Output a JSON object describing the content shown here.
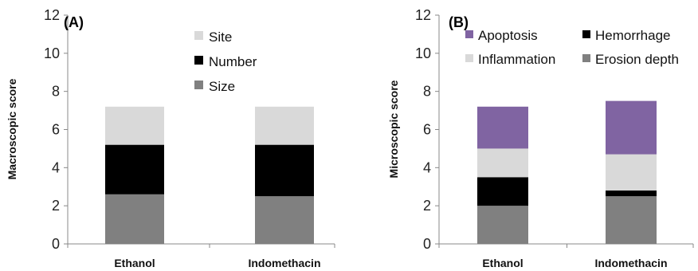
{
  "chart_data": [
    {
      "type": "bar",
      "stacked": true,
      "panel_label": "(A)",
      "ylabel": "Macroscopic score",
      "ylim": [
        0,
        12
      ],
      "yticks": [
        0,
        2,
        4,
        6,
        8,
        10,
        12
      ],
      "categories": [
        "Ethanol",
        "Indomethacin"
      ],
      "series": [
        {
          "name": "Size",
          "color": "#808080",
          "values": [
            2.6,
            2.5
          ]
        },
        {
          "name": "Number",
          "color": "#000000",
          "values": [
            2.6,
            2.7
          ]
        },
        {
          "name": "Site",
          "color": "#d9d9d9",
          "values": [
            2.0,
            2.0
          ]
        }
      ],
      "legend_order": [
        "Site",
        "Number",
        "Size"
      ],
      "legend_position": "top-center",
      "grid": false
    },
    {
      "type": "bar",
      "stacked": true,
      "panel_label": "(B)",
      "ylabel": "Microscopic score",
      "ylim": [
        0,
        12
      ],
      "yticks": [
        0,
        2,
        4,
        6,
        8,
        10,
        12
      ],
      "categories": [
        "Ethanol",
        "Indomethacin"
      ],
      "series": [
        {
          "name": "Erosion depth",
          "color": "#808080",
          "values": [
            2.0,
            2.5
          ]
        },
        {
          "name": "Hemorrhage",
          "color": "#000000",
          "values": [
            1.5,
            0.3
          ]
        },
        {
          "name": "Inflammation",
          "color": "#d9d9d9",
          "values": [
            1.5,
            1.9
          ]
        },
        {
          "name": "Apoptosis",
          "color": "#8064a2",
          "values": [
            2.2,
            2.8
          ]
        }
      ],
      "legend_order": [
        "Apoptosis",
        "Hemorrhage",
        "Inflammation",
        "Erosion depth"
      ],
      "legend_position": "top",
      "grid": false
    }
  ]
}
